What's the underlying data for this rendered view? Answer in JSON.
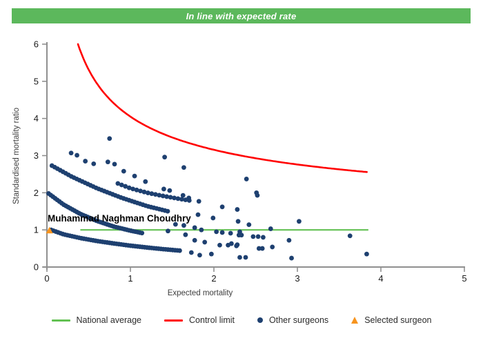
{
  "banner": {
    "text": "In line with expected rate",
    "bg_color": "#5cb85c",
    "text_color": "#ffffff"
  },
  "chart_data": {
    "type": "scatter",
    "title": "",
    "xlabel": "Expected mortality",
    "ylabel": "Standardised mortality ratio",
    "xlim": [
      0,
      5
    ],
    "ylim": [
      0,
      6
    ],
    "x_ticks": [
      "0",
      "1",
      "2",
      "3",
      "4",
      "5"
    ],
    "y_ticks": [
      "0",
      "1",
      "2",
      "3",
      "4",
      "5",
      "6"
    ],
    "grid": false,
    "axis_color": "#8f8f8f",
    "tick_label_color": "#1a1a1a",
    "axis_title_color": "#3d3d3d",
    "national_average": {
      "label": "National average",
      "y": 1.0,
      "x_start": 0.4,
      "x_end": 3.85,
      "color": "#62c152"
    },
    "control_limit": {
      "label": "Control limit",
      "formula": "y = 1 + a/sqrt(x)",
      "a": 3.05,
      "x_start": 0.3721,
      "x_end": 3.84,
      "y_clip": 6,
      "color": "#ff0000"
    },
    "selected_surgeon": {
      "name": "Muhammad Naghman Choudhry",
      "x": 0.03,
      "y": 0.98,
      "color": "#f7941e"
    },
    "other_surgeons": {
      "color": "#1e4070",
      "dot_radius": 3.4,
      "bands": [
        {
          "name": "band-1",
          "dot_step_x": 0.028,
          "controls": [
            [
              0.05,
              1.0
            ],
            [
              0.2,
              0.88
            ],
            [
              0.4,
              0.78
            ],
            [
              0.6,
              0.7
            ],
            [
              0.8,
              0.635
            ],
            [
              1.0,
              0.575
            ],
            [
              1.2,
              0.525
            ],
            [
              1.4,
              0.48
            ],
            [
              1.6,
              0.44
            ]
          ]
        },
        {
          "name": "band-2",
          "dot_step_x": 0.026,
          "controls": [
            [
              0.02,
              1.98
            ],
            [
              0.2,
              1.68
            ],
            [
              0.4,
              1.43
            ],
            [
              0.6,
              1.24
            ],
            [
              0.8,
              1.09
            ],
            [
              1.0,
              0.98
            ],
            [
              1.15,
              0.91
            ]
          ]
        },
        {
          "name": "band-3",
          "dot_step_x": 0.033,
          "controls": [
            [
              0.06,
              2.73
            ],
            [
              0.3,
              2.43
            ],
            [
              0.6,
              2.12
            ],
            [
              0.9,
              1.86
            ],
            [
              1.2,
              1.64
            ],
            [
              1.45,
              1.5
            ]
          ]
        },
        {
          "name": "band-4",
          "dot_step_x": 0.045,
          "controls": [
            [
              0.85,
              2.25
            ],
            [
              1.0,
              2.12
            ],
            [
              1.2,
              2.0
            ],
            [
              1.4,
              1.91
            ],
            [
              1.6,
              1.83
            ],
            [
              1.74,
              1.78
            ]
          ]
        }
      ],
      "points": [
        [
          0.29,
          3.07
        ],
        [
          0.36,
          3.01
        ],
        [
          0.46,
          2.85
        ],
        [
          0.56,
          2.78
        ],
        [
          0.73,
          2.83
        ],
        [
          0.81,
          2.77
        ],
        [
          0.92,
          2.58
        ],
        [
          1.05,
          2.45
        ],
        [
          1.18,
          2.3
        ],
        [
          1.4,
          2.1
        ],
        [
          1.47,
          2.06
        ],
        [
          1.63,
          1.93
        ],
        [
          1.7,
          1.86
        ],
        [
          0.75,
          3.46
        ],
        [
          1.41,
          2.96
        ],
        [
          1.64,
          2.68
        ],
        [
          1.82,
          1.77
        ],
        [
          2.1,
          1.62
        ],
        [
          2.28,
          1.55
        ],
        [
          2.39,
          2.37
        ],
        [
          2.51,
          2.0
        ],
        [
          2.52,
          1.93
        ],
        [
          1.81,
          1.41
        ],
        [
          1.99,
          1.32
        ],
        [
          2.29,
          1.23
        ],
        [
          2.42,
          1.14
        ],
        [
          2.68,
          1.03
        ],
        [
          3.02,
          1.23
        ],
        [
          1.54,
          1.15
        ],
        [
          1.64,
          1.12
        ],
        [
          1.77,
          1.06
        ],
        [
          1.85,
          1.0
        ],
        [
          2.03,
          0.95
        ],
        [
          2.1,
          0.93
        ],
        [
          2.2,
          0.91
        ],
        [
          2.31,
          0.95
        ],
        [
          3.63,
          0.84
        ],
        [
          1.45,
          0.97
        ],
        [
          1.66,
          0.87
        ],
        [
          2.3,
          0.86
        ],
        [
          2.33,
          0.86
        ],
        [
          2.47,
          0.82
        ],
        [
          2.53,
          0.82
        ],
        [
          2.59,
          0.8
        ],
        [
          1.77,
          0.72
        ],
        [
          1.89,
          0.67
        ],
        [
          2.07,
          0.59
        ],
        [
          2.17,
          0.59
        ],
        [
          2.27,
          0.57
        ],
        [
          2.21,
          0.63
        ],
        [
          2.28,
          0.6
        ],
        [
          2.54,
          0.5
        ],
        [
          2.58,
          0.5
        ],
        [
          2.7,
          0.54
        ],
        [
          2.9,
          0.72
        ],
        [
          1.73,
          0.39
        ],
        [
          1.83,
          0.32
        ],
        [
          1.97,
          0.35
        ],
        [
          2.31,
          0.26
        ],
        [
          2.38,
          0.26
        ],
        [
          2.93,
          0.24
        ],
        [
          3.83,
          0.35
        ]
      ]
    }
  },
  "legend": {
    "items": [
      {
        "label": "National average",
        "swatch": "line",
        "color": "#62c152"
      },
      {
        "label": "Control limit",
        "swatch": "line",
        "color": "#ff0000"
      },
      {
        "label": "Other surgeons",
        "swatch": "dot",
        "color": "#1e4070"
      },
      {
        "label": "Selected surgeon",
        "swatch": "triangle",
        "color": "#f7941e"
      }
    ]
  }
}
